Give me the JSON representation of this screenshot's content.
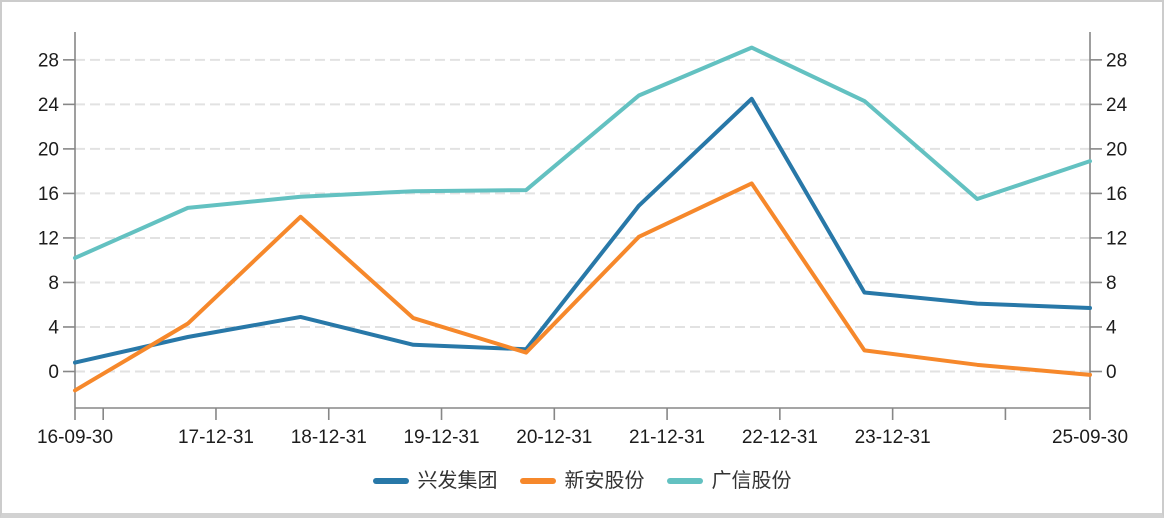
{
  "chart_data": {
    "type": "line",
    "title": "",
    "categories": [
      "16-09-30",
      "17-12-31",
      "18-12-31",
      "19-12-31",
      "20-12-31",
      "21-12-31",
      "22-12-31",
      "23-12-31",
      "",
      "25-09-30"
    ],
    "series": [
      {
        "name": "兴发集团",
        "color": "#2878a8",
        "values": [
          0.8,
          3.1,
          4.9,
          2.4,
          2.0,
          14.9,
          24.5,
          7.1,
          6.1,
          5.7
        ]
      },
      {
        "name": "新安股份",
        "color": "#f6882b",
        "values": [
          -1.7,
          4.3,
          13.9,
          4.8,
          1.7,
          12.1,
          16.9,
          1.9,
          0.6,
          -0.3
        ]
      },
      {
        "name": "广信股份",
        "color": "#63c1c1",
        "values": [
          10.2,
          14.7,
          15.7,
          16.2,
          16.3,
          24.8,
          29.1,
          24.3,
          15.5,
          18.9
        ]
      }
    ],
    "y_ticks": [
      0,
      4,
      8,
      12,
      16,
      20,
      24,
      28
    ],
    "ylim": [
      -3.2,
      30.5
    ],
    "dual_y_axis": true,
    "grid": "horizontal-dashed",
    "legend_position": "bottom",
    "style": {
      "grid_color": "#e2e2e2",
      "axis_color": "#878787",
      "tick_label_color": "#1c1c1c",
      "legend_text_color": "#333333",
      "background": "#ffffff"
    }
  }
}
